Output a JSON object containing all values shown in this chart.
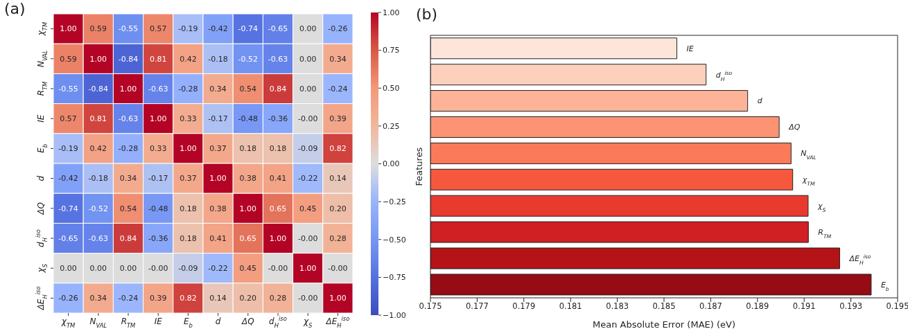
{
  "chart_data": [
    {
      "type": "heatmap",
      "title": "(a)",
      "categories": [
        "χ$_{TM}$",
        "N$_{VAL}$",
        "R$_{TM}$",
        "IE",
        "E$_{b}$",
        "d",
        "ΔQ",
        "d$_{H}$$^{iso}$",
        "χ$_{S}$",
        "ΔE$_{H}$$^{iso}$"
      ],
      "y_categories": [
        "χ$_{TM}$",
        "N$_{VAL}$",
        "R$_{TM}$",
        "IE",
        "E$_{b}$",
        "d",
        "ΔQ",
        "d$_{H}$$^{iso}$",
        "χ$_{S}$",
        "ΔE$_{H}$$^{iso}$"
      ],
      "cells": [
        [
          1.0,
          0.59,
          -0.55,
          0.57,
          -0.19,
          -0.42,
          -0.74,
          -0.65,
          0.0,
          -0.26
        ],
        [
          0.59,
          1.0,
          -0.84,
          0.81,
          0.42,
          -0.18,
          -0.52,
          -0.63,
          0.0,
          0.34
        ],
        [
          -0.55,
          -0.84,
          1.0,
          -0.63,
          -0.28,
          0.34,
          0.54,
          0.84,
          0.0,
          -0.24
        ],
        [
          0.57,
          0.81,
          -0.63,
          1.0,
          0.33,
          -0.17,
          -0.48,
          -0.36,
          0.0,
          0.39
        ],
        [
          -0.19,
          0.42,
          -0.28,
          0.33,
          1.0,
          0.37,
          0.18,
          0.18,
          -0.09,
          0.82
        ],
        [
          -0.42,
          -0.18,
          0.34,
          -0.17,
          0.37,
          1.0,
          0.38,
          0.41,
          -0.22,
          0.14
        ],
        [
          -0.74,
          -0.52,
          0.54,
          -0.48,
          0.18,
          0.38,
          1.0,
          0.65,
          0.45,
          0.2
        ],
        [
          -0.65,
          -0.63,
          0.84,
          -0.36,
          0.18,
          0.41,
          0.65,
          1.0,
          0.0,
          0.28
        ],
        [
          0.0,
          0.0,
          0.0,
          0.0,
          -0.09,
          -0.22,
          0.45,
          0.0,
          1.0,
          0.0
        ],
        [
          -0.26,
          0.34,
          -0.24,
          0.39,
          0.82,
          0.14,
          0.2,
          0.28,
          0.0,
          1.0
        ]
      ],
      "cell_labels": [
        [
          "1.00",
          "0.59",
          "-0.55",
          "0.57",
          "-0.19",
          "-0.42",
          "-0.74",
          "-0.65",
          "0.00",
          "-0.26"
        ],
        [
          "0.59",
          "1.00",
          "-0.84",
          "0.81",
          "0.42",
          "-0.18",
          "-0.52",
          "-0.63",
          "0.00",
          "0.34"
        ],
        [
          "-0.55",
          "-0.84",
          "1.00",
          "-0.63",
          "-0.28",
          "0.34",
          "0.54",
          "0.84",
          "0.00",
          "-0.24"
        ],
        [
          "0.57",
          "0.81",
          "-0.63",
          "1.00",
          "0.33",
          "-0.17",
          "-0.48",
          "-0.36",
          "-0.00",
          "0.39"
        ],
        [
          "-0.19",
          "0.42",
          "-0.28",
          "0.33",
          "1.00",
          "0.37",
          "0.18",
          "0.18",
          "-0.09",
          "0.82"
        ],
        [
          "-0.42",
          "-0.18",
          "0.34",
          "-0.17",
          "0.37",
          "1.00",
          "0.38",
          "0.41",
          "-0.22",
          "0.14"
        ],
        [
          "-0.74",
          "-0.52",
          "0.54",
          "-0.48",
          "0.18",
          "0.38",
          "1.00",
          "0.65",
          "0.45",
          "0.20"
        ],
        [
          "-0.65",
          "-0.63",
          "0.84",
          "-0.36",
          "0.18",
          "0.41",
          "0.65",
          "1.00",
          "-0.00",
          "0.28"
        ],
        [
          "0.00",
          "0.00",
          "0.00",
          "-0.00",
          "-0.09",
          "-0.22",
          "0.45",
          "-0.00",
          "1.00",
          "-0.00"
        ],
        [
          "-0.26",
          "0.34",
          "-0.24",
          "0.39",
          "0.82",
          "0.14",
          "0.20",
          "0.28",
          "-0.00",
          "1.00"
        ]
      ],
      "data_labels": true,
      "clim": [
        -1,
        1
      ],
      "cticks": [
        {
          "value": 1,
          "label": "1.00"
        },
        {
          "value": 0.75,
          "label": "0.75"
        },
        {
          "value": 0.5,
          "label": "0.50"
        },
        {
          "value": 0.25,
          "label": "0.25"
        },
        {
          "value": 0,
          "label": "0.00"
        },
        {
          "value": -0.25,
          "label": "−0.25"
        },
        {
          "value": -0.5,
          "label": "−0.50"
        },
        {
          "value": -0.75,
          "label": "−0.75"
        },
        {
          "value": -1,
          "label": "−1.00"
        }
      ]
    },
    {
      "type": "bar",
      "orientation": "horizontal",
      "title": "(b)",
      "xlabel": "Mean Absolute Error (MAE) (eV)",
      "ylabel": "Features",
      "categories": [
        "IE",
        "d$_{H}$$^{iso}$",
        "d",
        "ΔQ",
        "N$_{VAL}$",
        "χ$_{TM}$",
        "χ$_{S}$",
        "R$_{TM}$",
        "ΔE$_{H}$$^{iso}$",
        "E$_{b}$"
      ],
      "values": [
        0.18555,
        0.1868,
        0.18858,
        0.18993,
        0.19044,
        0.19051,
        0.19117,
        0.19118,
        0.19252,
        0.19387
      ],
      "colors": [
        "#fee5d9",
        "#fcd0bc",
        "#fcb398",
        "#fc9373",
        "#fb7a5a",
        "#f6583e",
        "#e83a2f",
        "#d02024",
        "#b41318",
        "#960b14"
      ],
      "xlim": [
        0.175,
        0.195
      ],
      "xticks": [
        0.175,
        0.177,
        0.179,
        0.181,
        0.183,
        0.185,
        0.187,
        0.189,
        0.191,
        0.193,
        0.195
      ],
      "tick_labels": "x"
    }
  ]
}
